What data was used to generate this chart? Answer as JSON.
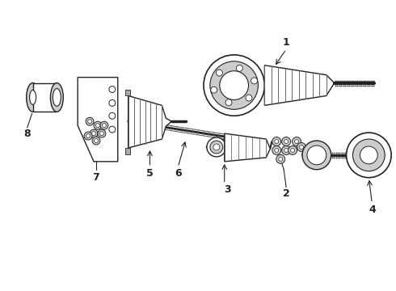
{
  "bg_color": "#ffffff",
  "lc": "#222222",
  "gray": "#aaaaaa",
  "dgray": "#666666",
  "lgray": "#cccccc",
  "figsize": [
    4.9,
    3.6
  ],
  "dpi": 100,
  "xlim": [
    0,
    490
  ],
  "ylim": [
    0,
    360
  ]
}
